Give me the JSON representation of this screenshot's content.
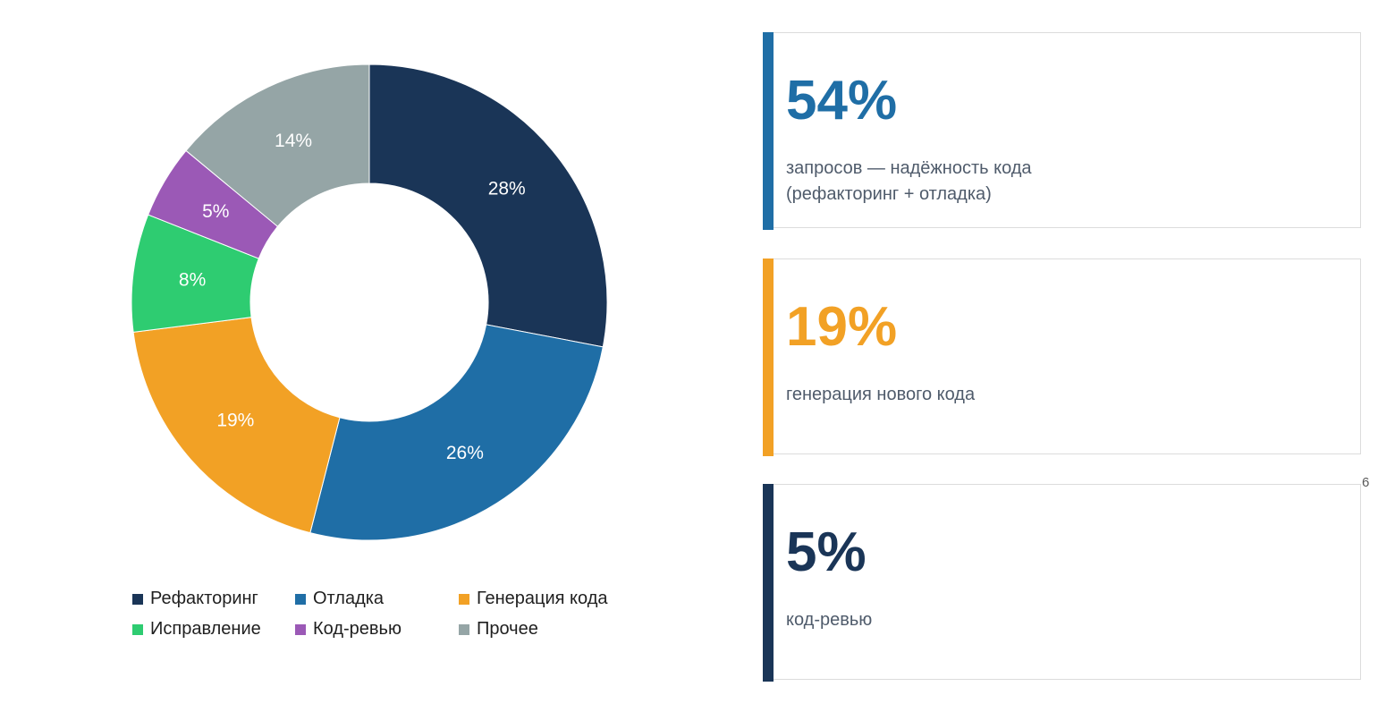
{
  "chart_data": {
    "type": "pie",
    "style": "donut",
    "categories": [
      "Рефакторинг",
      "Отладка",
      "Генерация кода",
      "Исправление",
      "Код-ревью",
      "Прочее"
    ],
    "values": [
      28,
      26,
      19,
      8,
      5,
      14
    ],
    "labels": [
      "28%",
      "26%",
      "19%",
      "8%",
      "5%",
      "14%"
    ],
    "colors": [
      "#1a3557",
      "#1f6ea6",
      "#f2a125",
      "#2ecc71",
      "#9b59b6",
      "#95a5a6"
    ],
    "legend_position": "bottom"
  },
  "cards": [
    {
      "big": "54%",
      "description": "запросов — надёжность кода\n(рефакторинг + отладка)",
      "color": "#1f6ea6"
    },
    {
      "big": "19%",
      "description": "генерация нового кода",
      "color": "#f2a125"
    },
    {
      "big": "5%",
      "description": "код-ревью",
      "color": "#1a3557"
    }
  ],
  "page_number": "6"
}
